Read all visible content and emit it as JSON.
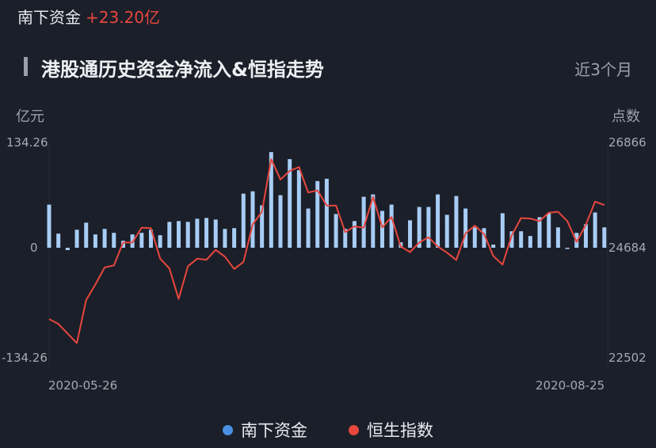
{
  "header": {
    "label": "南下资金",
    "value": "+23.20亿"
  },
  "title": "港股通历史资金净流入&恒指走势",
  "range_selector": "近3个月",
  "colors": {
    "background": "#1b1f29",
    "bar": "#a8cdf5",
    "line": "#e8473e",
    "legend_bar": "#4a90e2",
    "positive": "#e8473e"
  },
  "chart_data": {
    "type": "bar+line",
    "left_axis": {
      "label": "亿元",
      "ticks": [
        "134.26",
        "0",
        "-134.26"
      ],
      "range": [
        -134.26,
        134.26
      ]
    },
    "right_axis": {
      "label": "点数",
      "ticks": [
        "26866",
        "24684",
        "22502"
      ],
      "range": [
        22502,
        26866
      ]
    },
    "x_tick_labels": [
      "2020-05-26",
      "2020-08-25"
    ],
    "x_range": [
      "2020-05-26",
      "2020-08-25"
    ],
    "grid": false,
    "legend_position": "bottom",
    "series": [
      {
        "name": "南下资金",
        "type": "bar",
        "axis": "left",
        "values": [
          55,
          18,
          -3,
          23,
          32,
          17,
          24,
          19,
          9,
          17,
          19,
          23,
          16,
          33,
          34,
          33,
          37,
          38,
          36,
          24,
          25,
          69,
          72,
          54,
          122,
          67,
          113,
          99,
          50,
          85,
          88,
          43,
          24,
          34,
          65,
          68,
          47,
          55,
          7,
          35,
          52,
          52,
          68,
          42,
          66,
          50,
          26,
          25,
          4,
          44,
          21,
          21,
          15,
          39,
          44,
          26,
          -1,
          19,
          30,
          45,
          26
        ]
      },
      {
        "name": "恒生指数",
        "type": "line",
        "axis": "right",
        "values": [
          23269,
          23172,
          22983,
          22794,
          23647,
          23955,
          24295,
          24333,
          24792,
          24792,
          25100,
          25089,
          24468,
          24274,
          23669,
          24317,
          24468,
          24446,
          24641,
          24506,
          24263,
          24403,
          25170,
          25429,
          26520,
          26099,
          26277,
          26358,
          25829,
          25872,
          25559,
          25559,
          25008,
          25127,
          25100,
          25737,
          25105,
          25321,
          24711,
          24598,
          24792,
          24900,
          24711,
          24587,
          24441,
          24981,
          25143,
          24965,
          24522,
          24349,
          24943,
          25300,
          25289,
          25235,
          25413,
          25429,
          25235,
          24803,
          25159,
          25640,
          25570
        ]
      }
    ]
  }
}
